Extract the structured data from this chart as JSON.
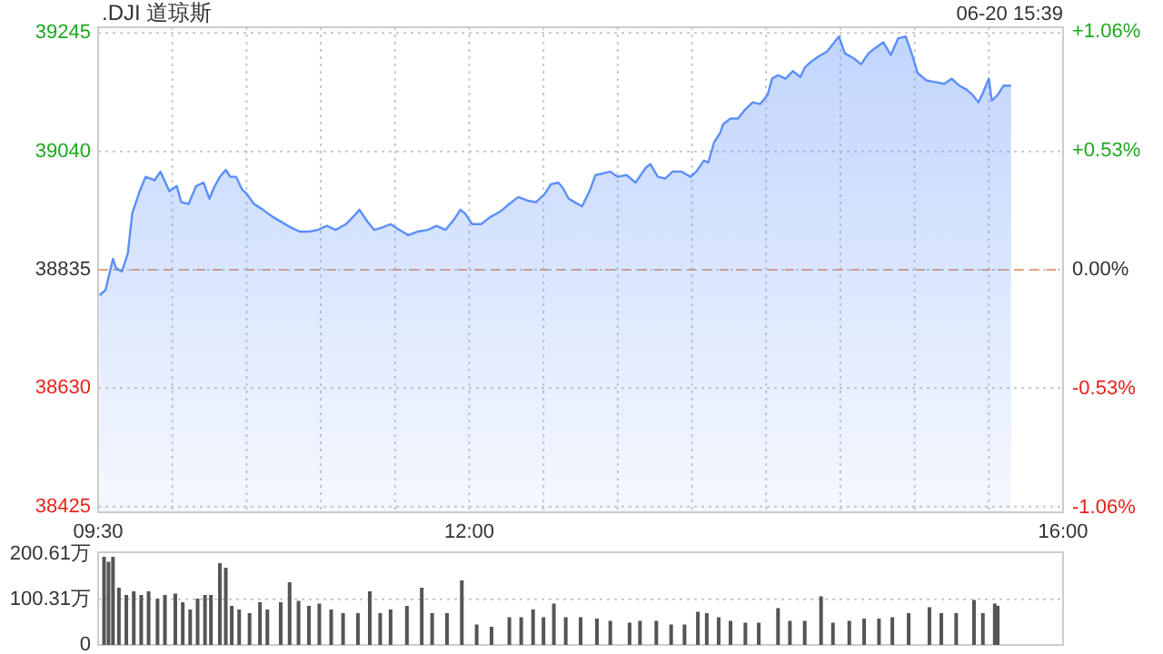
{
  "chart_data": [
    {
      "type": "area",
      "title": ".DJI 道琼斯",
      "annotations": [
        "06-20 15:39"
      ],
      "color": "#5b8ff9",
      "grid": true,
      "xlim": [
        9.5,
        16
      ],
      "xticks": [
        {
          "value": 9.5,
          "label": "09:30"
        },
        {
          "value": 10,
          "label": null
        },
        {
          "value": 10.5,
          "label": null
        },
        {
          "value": 11,
          "label": null
        },
        {
          "value": 11.5,
          "label": null
        },
        {
          "value": 12,
          "label": "12:00"
        },
        {
          "value": 12.5,
          "label": null
        },
        {
          "value": 13,
          "label": null
        },
        {
          "value": 13.5,
          "label": null
        },
        {
          "value": 14,
          "label": null
        },
        {
          "value": 14.5,
          "label": null
        },
        {
          "value": 15,
          "label": null
        },
        {
          "value": 15.5,
          "label": null
        },
        {
          "value": 16,
          "label": "16:00"
        }
      ],
      "ylim": [
        38415,
        39255
      ],
      "yticks": [
        38425,
        38630,
        38835,
        39040,
        39245
      ],
      "y2lim": [
        -1.08,
        1.08
      ],
      "y2ticks": [
        {
          "value": -1.06,
          "label": "-1.06%"
        },
        {
          "value": -0.53,
          "label": "-0.53%"
        },
        {
          "value": 0,
          "label": "0.00%"
        },
        {
          "value": 0.53,
          "label": "+0.53%"
        },
        {
          "value": 1.06,
          "label": "+1.06%"
        }
      ],
      "ref_lines": [
        {
          "axis": "y",
          "value": 38835,
          "color": "#e8a07c",
          "line_style": "dashed"
        }
      ],
      "x": [
        9.51,
        9.55,
        9.6,
        9.62,
        9.66,
        9.7,
        9.73,
        9.78,
        9.82,
        9.88,
        9.92,
        9.98,
        10.03,
        10.06,
        10.11,
        10.16,
        10.21,
        10.25,
        10.28,
        10.32,
        10.36,
        10.39,
        10.43,
        10.47,
        10.5,
        10.55,
        10.61,
        10.68,
        10.74,
        10.8,
        10.86,
        10.92,
        10.98,
        11.04,
        11.1,
        11.17,
        11.23,
        11.26,
        11.31,
        11.36,
        11.41,
        11.47,
        11.53,
        11.59,
        11.65,
        11.72,
        11.78,
        11.84,
        11.9,
        11.94,
        11.97,
        12.02,
        12.08,
        12.14,
        12.21,
        12.27,
        12.33,
        12.39,
        12.45,
        12.51,
        12.55,
        12.6,
        12.63,
        12.67,
        12.71,
        12.76,
        12.81,
        12.85,
        12.9,
        12.95,
        13,
        13.06,
        13.12,
        13.19,
        13.22,
        13.27,
        13.32,
        13.37,
        13.43,
        13.49,
        13.53,
        13.58,
        13.61,
        13.65,
        13.69,
        13.71,
        13.76,
        13.81,
        13.86,
        13.91,
        13.96,
        14.01,
        14.04,
        14.08,
        14.13,
        14.18,
        14.23,
        14.26,
        14.3,
        14.35,
        14.41,
        14.45,
        14.49,
        14.53,
        14.59,
        14.64,
        14.69,
        14.74,
        14.79,
        14.84,
        14.89,
        14.94,
        14.98,
        15.02,
        15.08,
        15.14,
        15.2,
        15.25,
        15.3,
        15.35,
        15.39,
        15.43,
        15.46,
        15.5,
        15.52,
        15.56,
        15.6,
        15.65
      ],
      "values": [
        38791,
        38800,
        38854,
        38838,
        38832,
        38863,
        38933,
        38971,
        38996,
        38990,
        39005,
        38971,
        38980,
        38952,
        38949,
        38980,
        38986,
        38958,
        38977,
        38996,
        39008,
        38996,
        38996,
        38974,
        38967,
        38949,
        38939,
        38926,
        38917,
        38908,
        38901,
        38901,
        38904,
        38911,
        38904,
        38914,
        38930,
        38939,
        38920,
        38904,
        38908,
        38914,
        38904,
        38895,
        38901,
        38904,
        38911,
        38904,
        38923,
        38939,
        38933,
        38914,
        38914,
        38926,
        38936,
        38949,
        38961,
        38955,
        38952,
        38967,
        38983,
        38986,
        38977,
        38958,
        38952,
        38945,
        38971,
        38999,
        39002,
        39005,
        38996,
        38999,
        38986,
        39012,
        39018,
        38996,
        38993,
        39005,
        39005,
        38996,
        39005,
        39024,
        39021,
        39056,
        39072,
        39087,
        39097,
        39097,
        39113,
        39125,
        39122,
        39138,
        39166,
        39172,
        39166,
        39179,
        39169,
        39185,
        39195,
        39204,
        39213,
        39226,
        39239,
        39210,
        39201,
        39191,
        39210,
        39220,
        39229,
        39207,
        39236,
        39239,
        39210,
        39176,
        39163,
        39160,
        39157,
        39166,
        39154,
        39147,
        39138,
        39125,
        39141,
        39166,
        39128,
        39138,
        39154,
        39154
      ]
    },
    {
      "type": "bar",
      "color": "#555555",
      "grid": "y",
      "tick_labels": "y",
      "xlim": [
        9.5,
        16
      ],
      "ylim": [
        0,
        204
      ],
      "yticks": [
        0,
        {
          "value": 100.31,
          "label": "100.31万"
        },
        {
          "value": 200.61,
          "label": "200.61万"
        }
      ],
      "x": [
        9.54,
        9.57,
        9.6,
        9.64,
        9.69,
        9.74,
        9.79,
        9.84,
        9.9,
        9.95,
        10.02,
        10.07,
        10.12,
        10.17,
        10.22,
        10.26,
        10.32,
        10.36,
        10.4,
        10.45,
        10.52,
        10.59,
        10.64,
        10.73,
        10.79,
        10.85,
        10.92,
        10.99,
        11.07,
        11.15,
        11.25,
        11.33,
        11.4,
        11.47,
        11.58,
        11.68,
        11.75,
        11.85,
        11.95,
        12.05,
        12.15,
        12.27,
        12.35,
        12.43,
        12.5,
        12.57,
        12.65,
        12.75,
        12.86,
        12.95,
        13.08,
        13.15,
        13.26,
        13.36,
        13.45,
        13.54,
        13.6,
        13.68,
        13.76,
        13.86,
        13.95,
        14.08,
        14.16,
        14.26,
        14.37,
        14.45,
        14.56,
        14.66,
        14.76,
        14.85,
        14.96,
        15.1,
        15.18,
        15.28,
        15.4,
        15.46,
        15.54,
        15.56
      ],
      "values": [
        194,
        183,
        194,
        126,
        110,
        118,
        110,
        118,
        102,
        110,
        113,
        94,
        78,
        102,
        110,
        110,
        180,
        170,
        86,
        78,
        70,
        94,
        78,
        94,
        138,
        97,
        86,
        91,
        78,
        70,
        70,
        118,
        70,
        78,
        86,
        126,
        70,
        70,
        142,
        45,
        40,
        61,
        61,
        78,
        61,
        91,
        61,
        61,
        58,
        53,
        49,
        53,
        53,
        45,
        45,
        73,
        70,
        61,
        53,
        49,
        49,
        81,
        53,
        53,
        107,
        49,
        53,
        58,
        58,
        61,
        70,
        83,
        70,
        70,
        99,
        70,
        91,
        86
      ]
    }
  ]
}
